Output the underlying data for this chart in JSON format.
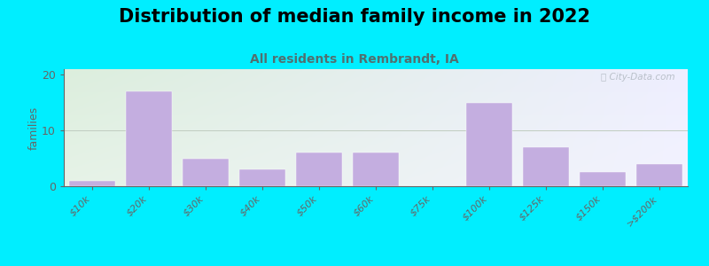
{
  "title": "Distribution of median family income in 2022",
  "subtitle": "All residents in Rembrandt, IA",
  "categories": [
    "$10k",
    "$20k",
    "$30k",
    "$40k",
    "$50k",
    "$60k",
    "$75k",
    "$100k",
    "$125k",
    "$150k",
    ">$200k"
  ],
  "values": [
    1,
    17,
    5,
    3,
    6,
    6,
    0,
    15,
    7,
    2.5,
    4
  ],
  "bar_color": "#c4aee0",
  "bar_edge_color": "#c4aee0",
  "ylabel": "families",
  "ylim": [
    0,
    21
  ],
  "yticks": [
    0,
    10,
    20
  ],
  "background_outer": "#00eeff",
  "background_inner_topleft": "#dceedd",
  "background_inner_topright": "#eeeeff",
  "background_inner_bottom": "#f5f5fa",
  "title_fontsize": 15,
  "subtitle_fontsize": 10,
  "subtitle_color": "#507070",
  "watermark_text": "ⓘ City-Data.com",
  "grid_color": "#c0ccc0",
  "axis_color": "#666666",
  "tick_color": "#666666"
}
